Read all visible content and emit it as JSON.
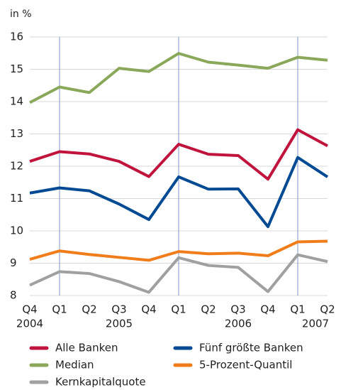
{
  "chart_data": {
    "type": "line",
    "y_label": "in %",
    "categories": [
      "Q4",
      "Q1",
      "Q2",
      "Q3",
      "Q4",
      "Q1",
      "Q2",
      "Q3",
      "Q4",
      "Q1",
      "Q2"
    ],
    "years": [
      "2004",
      null,
      null,
      "2005",
      null,
      null,
      null,
      "2006",
      null,
      null,
      "2007"
    ],
    "ylim": [
      8,
      16
    ],
    "yticks": [
      8,
      9,
      10,
      11,
      12,
      13,
      14,
      15,
      16
    ],
    "grid": true,
    "series": [
      {
        "name": "Alle Banken",
        "color": "#c0143c",
        "values": [
          12.15,
          12.45,
          12.38,
          12.15,
          11.68,
          12.68,
          12.37,
          12.33,
          11.6,
          13.13,
          12.63
        ]
      },
      {
        "name": "Fünf größte Banken",
        "color": "#004a93",
        "values": [
          11.17,
          11.33,
          11.24,
          10.83,
          10.35,
          11.67,
          11.29,
          11.3,
          10.13,
          12.27,
          11.67
        ]
      },
      {
        "name": "Median",
        "color": "#8aa85a",
        "values": [
          13.97,
          14.45,
          14.28,
          15.03,
          14.93,
          15.49,
          15.22,
          15.13,
          15.03,
          15.37,
          15.28
        ]
      },
      {
        "name": "5-Prozent-Quantil",
        "color": "#f07d1a",
        "values": [
          9.12,
          9.38,
          9.27,
          9.18,
          9.09,
          9.36,
          9.29,
          9.31,
          9.23,
          9.66,
          9.68
        ]
      },
      {
        "name": "Kernkapitalquote",
        "color": "#a0a0a0",
        "values": [
          8.32,
          8.74,
          8.68,
          8.43,
          8.1,
          9.17,
          8.93,
          8.87,
          8.12,
          9.26,
          9.05
        ]
      }
    ]
  }
}
